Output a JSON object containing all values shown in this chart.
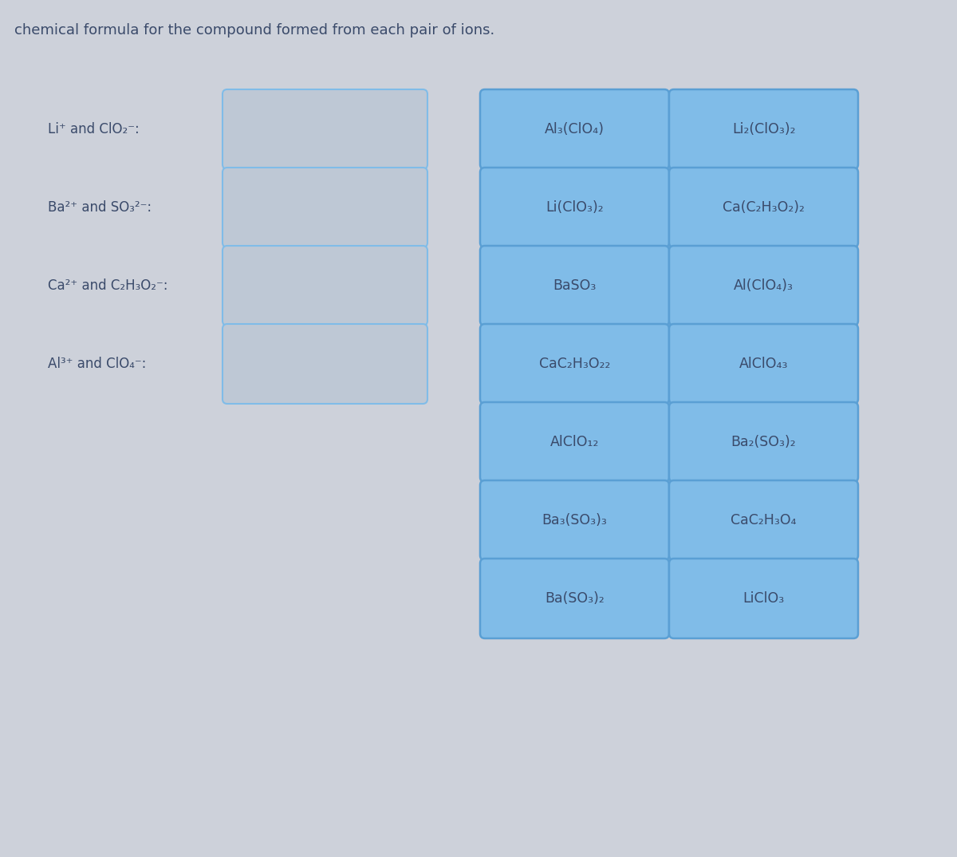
{
  "title": "chemical formula for the compound formed from each pair of ions.",
  "title_fontsize": 13,
  "background_color": "#cdd1da",
  "box_bg_color": "#80bce8",
  "box_border_color": "#5a9fd4",
  "empty_box_border_color": "#80bce8",
  "empty_box_bg_color": "#bec8d5",
  "text_color": "#3a4a6a",
  "left_labels": [
    {
      "text": "Li⁺ and ClO₂⁻:",
      "row_align": 1
    },
    {
      "text": "Ba²⁺ and SO₃²⁻:",
      "row_align": 2
    },
    {
      "text": "Ca²⁺ and C₂H₃O₂⁻:",
      "row_align": 3
    },
    {
      "text": "Al³⁺ and ClO₄⁻:",
      "row_align": 4
    }
  ],
  "formula_rows": [
    [
      "Al₃(ClO₄)",
      "Li₂(ClO₃)₂"
    ],
    [
      "Li(ClO₃)₂",
      "Ca(C₂H₃O₂)₂"
    ],
    [
      "BaSO₃",
      "Al(ClO₄)₃"
    ],
    [
      "CaC₂H₃O₂₂",
      "AlClO₄₃"
    ],
    [
      "AlClO₁₂",
      "Ba₂(SO₃)₂"
    ],
    [
      "Ba₃(SO₃)₃",
      "CaC₂H₃O₄"
    ],
    [
      "Ba(SO₃)₂",
      "LiClO₃"
    ]
  ]
}
